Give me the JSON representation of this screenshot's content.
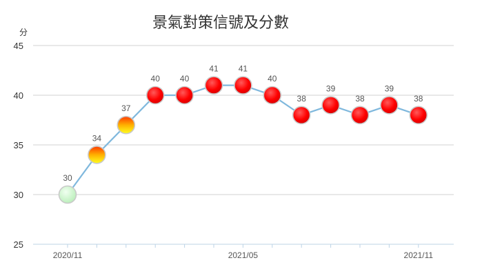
{
  "chart_data": {
    "type": "line",
    "title": "景氣對策信號及分數",
    "ylabel": "分",
    "xlabel": "",
    "ylim": [
      25,
      45
    ],
    "yticks": [
      25,
      30,
      35,
      40,
      45
    ],
    "grid": true,
    "legend": "none",
    "x": [
      "2020/11",
      "2020/12",
      "2021/01",
      "2021/02",
      "2021/03",
      "2021/04",
      "2021/05",
      "2021/06",
      "2021/07",
      "2021/08",
      "2021/09",
      "2021/10",
      "2021/11"
    ],
    "xtick_labels": [
      "2020/11",
      "2021/05",
      "2021/11"
    ],
    "series": [
      {
        "values": [
          30,
          34,
          37,
          40,
          40,
          41,
          41,
          40,
          38,
          39,
          38,
          39,
          38
        ],
        "signals": [
          "green",
          "yellow-red",
          "yellow-red",
          "red",
          "red",
          "red",
          "red",
          "red",
          "red",
          "red",
          "red",
          "red",
          "red"
        ]
      }
    ],
    "colors": {
      "line": "#7fb8dd",
      "green": "#c8f2c8",
      "yellow-red": "#ffd000",
      "red": "#ff0000",
      "grid": "#d2d2d2"
    }
  }
}
